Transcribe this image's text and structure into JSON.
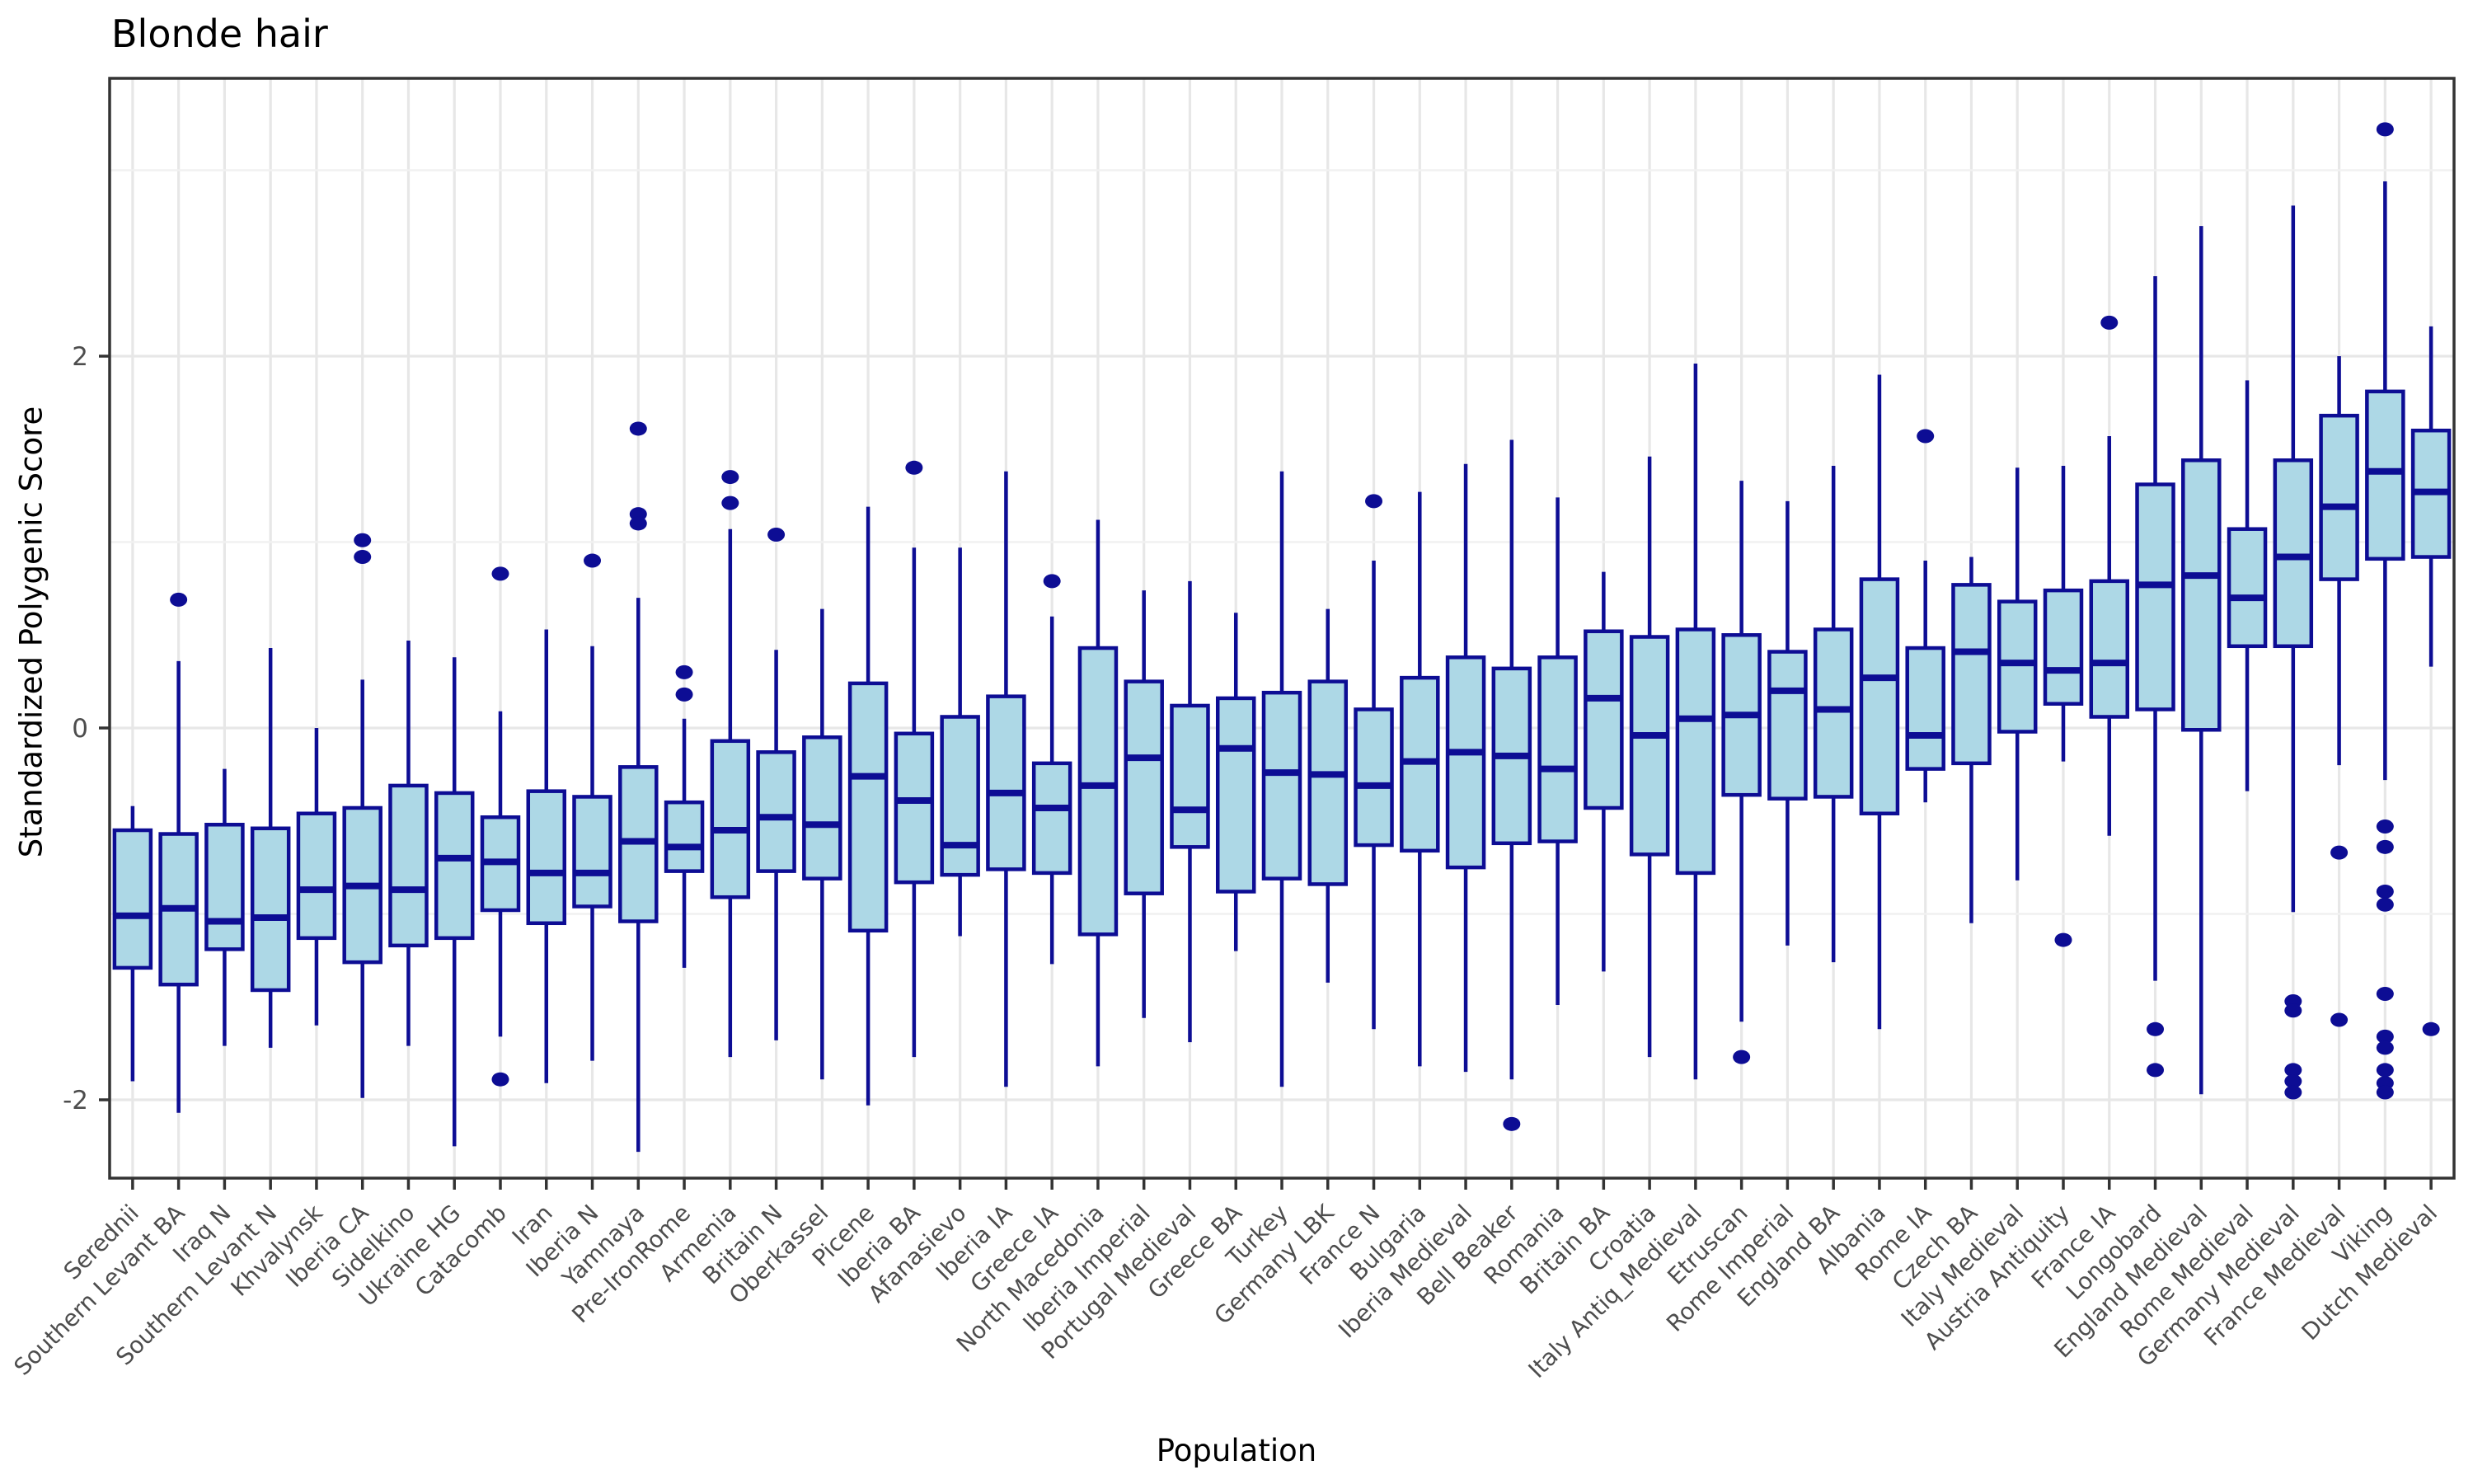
{
  "chart_data": {
    "type": "boxplot",
    "title": "Blonde hair",
    "xlabel": "Population",
    "ylabel": "Standardized Polygenic Score",
    "y_axis": {
      "ticks": [
        2,
        0,
        -2
      ],
      "minor_ticks": [
        3,
        1,
        -1
      ],
      "range": [
        -2.42,
        3.49
      ]
    },
    "legend": "none",
    "grid": "on",
    "colors": {
      "box_fill": "#ADD8E6",
      "box_line": "#0D0D94",
      "grid_major": "#E7E7E7",
      "grid_minor": "#F1F1F1",
      "panel_border": "#333333",
      "tick_text": "#4D4D4D",
      "title_text": "#000000"
    },
    "boxes": [
      {
        "name": "Serednii",
        "whislo": -1.9,
        "q1": -1.29,
        "med": -1.01,
        "q3": -0.55,
        "whishi": -0.42,
        "outliers": []
      },
      {
        "name": "Southern Levant BA",
        "whislo": -2.07,
        "q1": -1.38,
        "med": -0.97,
        "q3": -0.57,
        "whishi": 0.36,
        "outliers": [
          0.69
        ]
      },
      {
        "name": "Iraq N",
        "whislo": -1.71,
        "q1": -1.19,
        "med": -1.04,
        "q3": -0.52,
        "whishi": -0.22,
        "outliers": []
      },
      {
        "name": "Southern Levant N",
        "whislo": -1.72,
        "q1": -1.41,
        "med": -1.02,
        "q3": -0.54,
        "whishi": 0.43,
        "outliers": []
      },
      {
        "name": "Khvalynsk",
        "whislo": -1.6,
        "q1": -1.13,
        "med": -0.87,
        "q3": -0.46,
        "whishi": 0.0,
        "outliers": []
      },
      {
        "name": "Iberia CA",
        "whislo": -1.99,
        "q1": -1.26,
        "med": -0.85,
        "q3": -0.43,
        "whishi": 0.26,
        "outliers": [
          1.01,
          0.92
        ]
      },
      {
        "name": "Sidelkino",
        "whislo": -1.71,
        "q1": -1.17,
        "med": -0.87,
        "q3": -0.31,
        "whishi": 0.47,
        "outliers": []
      },
      {
        "name": "Ukraine HG",
        "whislo": -2.25,
        "q1": -1.13,
        "med": -0.7,
        "q3": -0.35,
        "whishi": 0.38,
        "outliers": []
      },
      {
        "name": "Catacomb",
        "whislo": -1.66,
        "q1": -0.98,
        "med": -0.72,
        "q3": -0.48,
        "whishi": 0.09,
        "outliers": [
          0.83,
          -1.89
        ]
      },
      {
        "name": "Iran",
        "whislo": -1.91,
        "q1": -1.05,
        "med": -0.78,
        "q3": -0.34,
        "whishi": 0.53,
        "outliers": []
      },
      {
        "name": "Iberia N",
        "whislo": -1.79,
        "q1": -0.96,
        "med": -0.78,
        "q3": -0.37,
        "whishi": 0.44,
        "outliers": [
          0.9
        ]
      },
      {
        "name": "Yamnaya",
        "whislo": -2.28,
        "q1": -1.04,
        "med": -0.61,
        "q3": -0.21,
        "whishi": 0.7,
        "outliers": [
          1.61,
          1.15,
          1.1
        ]
      },
      {
        "name": "Pre-IronRome",
        "whislo": -1.29,
        "q1": -0.77,
        "med": -0.64,
        "q3": -0.4,
        "whishi": 0.05,
        "outliers": [
          0.3,
          0.18
        ]
      },
      {
        "name": "Armenia",
        "whislo": -1.77,
        "q1": -0.91,
        "med": -0.55,
        "q3": -0.07,
        "whishi": 1.07,
        "outliers": [
          1.35,
          1.21
        ]
      },
      {
        "name": "Britain N",
        "whislo": -1.68,
        "q1": -0.77,
        "med": -0.48,
        "q3": -0.13,
        "whishi": 0.42,
        "outliers": [
          1.04
        ]
      },
      {
        "name": "Oberkassel",
        "whislo": -1.89,
        "q1": -0.81,
        "med": -0.52,
        "q3": -0.05,
        "whishi": 0.64,
        "outliers": []
      },
      {
        "name": "Picene",
        "whislo": -2.03,
        "q1": -1.09,
        "med": -0.26,
        "q3": 0.24,
        "whishi": 1.19,
        "outliers": []
      },
      {
        "name": "Iberia BA",
        "whislo": -1.77,
        "q1": -0.83,
        "med": -0.39,
        "q3": -0.03,
        "whishi": 0.97,
        "outliers": [
          1.4
        ]
      },
      {
        "name": "Afanasievo",
        "whislo": -1.12,
        "q1": -0.79,
        "med": -0.63,
        "q3": 0.06,
        "whishi": 0.97,
        "outliers": []
      },
      {
        "name": "Iberia IA",
        "whislo": -1.93,
        "q1": -0.76,
        "med": -0.35,
        "q3": 0.17,
        "whishi": 1.38,
        "outliers": []
      },
      {
        "name": "Greece IA",
        "whislo": -1.27,
        "q1": -0.78,
        "med": -0.43,
        "q3": -0.19,
        "whishi": 0.6,
        "outliers": [
          0.79
        ]
      },
      {
        "name": "North Macedonia",
        "whislo": -1.82,
        "q1": -1.11,
        "med": -0.31,
        "q3": 0.43,
        "whishi": 1.12,
        "outliers": []
      },
      {
        "name": "Iberia Imperial",
        "whislo": -1.56,
        "q1": -0.89,
        "med": -0.16,
        "q3": 0.25,
        "whishi": 0.74,
        "outliers": []
      },
      {
        "name": "Portugal Medieval",
        "whislo": -1.69,
        "q1": -0.64,
        "med": -0.44,
        "q3": 0.12,
        "whishi": 0.79,
        "outliers": []
      },
      {
        "name": "Greece BA",
        "whislo": -1.2,
        "q1": -0.88,
        "med": -0.11,
        "q3": 0.16,
        "whishi": 0.62,
        "outliers": []
      },
      {
        "name": "Turkey",
        "whislo": -1.93,
        "q1": -0.81,
        "med": -0.24,
        "q3": 0.19,
        "whishi": 1.38,
        "outliers": []
      },
      {
        "name": "Germany LBK",
        "whislo": -1.37,
        "q1": -0.84,
        "med": -0.25,
        "q3": 0.25,
        "whishi": 0.64,
        "outliers": []
      },
      {
        "name": "France N",
        "whislo": -1.62,
        "q1": -0.63,
        "med": -0.31,
        "q3": 0.1,
        "whishi": 0.9,
        "outliers": [
          1.22
        ]
      },
      {
        "name": "Bulgaria",
        "whislo": -1.82,
        "q1": -0.66,
        "med": -0.18,
        "q3": 0.27,
        "whishi": 1.27,
        "outliers": []
      },
      {
        "name": "Iberia Medieval",
        "whislo": -1.85,
        "q1": -0.75,
        "med": -0.13,
        "q3": 0.38,
        "whishi": 1.42,
        "outliers": []
      },
      {
        "name": "Bell Beaker",
        "whislo": -1.89,
        "q1": -0.62,
        "med": -0.15,
        "q3": 0.32,
        "whishi": 1.55,
        "outliers": [
          -2.13
        ]
      },
      {
        "name": "Romania",
        "whislo": -1.49,
        "q1": -0.61,
        "med": -0.22,
        "q3": 0.38,
        "whishi": 1.24,
        "outliers": []
      },
      {
        "name": "Britain BA",
        "whislo": -1.31,
        "q1": -0.43,
        "med": 0.16,
        "q3": 0.52,
        "whishi": 0.84,
        "outliers": []
      },
      {
        "name": "Croatia",
        "whislo": -1.77,
        "q1": -0.68,
        "med": -0.04,
        "q3": 0.49,
        "whishi": 1.46,
        "outliers": []
      },
      {
        "name": "Italy Antiq_Medieval",
        "whislo": -1.89,
        "q1": -0.78,
        "med": 0.05,
        "q3": 0.53,
        "whishi": 1.96,
        "outliers": []
      },
      {
        "name": "Etruscan",
        "whislo": -1.58,
        "q1": -0.36,
        "med": 0.07,
        "q3": 0.5,
        "whishi": 1.33,
        "outliers": [
          -1.77
        ]
      },
      {
        "name": "Rome Imperial",
        "whislo": -1.17,
        "q1": -0.38,
        "med": 0.2,
        "q3": 0.41,
        "whishi": 1.22,
        "outliers": []
      },
      {
        "name": "England BA",
        "whislo": -1.26,
        "q1": -0.37,
        "med": 0.1,
        "q3": 0.53,
        "whishi": 1.41,
        "outliers": []
      },
      {
        "name": "Albania",
        "whislo": -1.62,
        "q1": -0.46,
        "med": 0.27,
        "q3": 0.8,
        "whishi": 1.9,
        "outliers": []
      },
      {
        "name": "Rome IA",
        "whislo": -0.4,
        "q1": -0.22,
        "med": -0.04,
        "q3": 0.43,
        "whishi": 0.9,
        "outliers": [
          1.57
        ]
      },
      {
        "name": "Czech BA",
        "whislo": -1.05,
        "q1": -0.19,
        "med": 0.41,
        "q3": 0.77,
        "whishi": 0.92,
        "outliers": []
      },
      {
        "name": "Italy Medieval",
        "whislo": -0.82,
        "q1": -0.02,
        "med": 0.35,
        "q3": 0.68,
        "whishi": 1.4,
        "outliers": []
      },
      {
        "name": "Austria Antiquity",
        "whislo": -0.18,
        "q1": 0.13,
        "med": 0.31,
        "q3": 0.74,
        "whishi": 1.41,
        "outliers": [
          -1.14
        ]
      },
      {
        "name": "France IA",
        "whislo": -0.58,
        "q1": 0.06,
        "med": 0.35,
        "q3": 0.79,
        "whishi": 1.57,
        "outliers": [
          2.18
        ]
      },
      {
        "name": "Longobard",
        "whislo": -1.36,
        "q1": 0.1,
        "med": 0.77,
        "q3": 1.31,
        "whishi": 2.43,
        "outliers": [
          -1.62,
          -1.84
        ]
      },
      {
        "name": "England Medieval",
        "whislo": -1.97,
        "q1": -0.01,
        "med": 0.82,
        "q3": 1.44,
        "whishi": 2.7,
        "outliers": []
      },
      {
        "name": "Rome Medieval",
        "whislo": -0.34,
        "q1": 0.44,
        "med": 0.7,
        "q3": 1.07,
        "whishi": 1.87,
        "outliers": []
      },
      {
        "name": "Germany Medieval",
        "whislo": -0.99,
        "q1": 0.44,
        "med": 0.92,
        "q3": 1.44,
        "whishi": 2.81,
        "outliers": [
          -1.47,
          -1.52,
          -1.84,
          -1.9,
          -1.96
        ]
      },
      {
        "name": "France Medieval",
        "whislo": -0.2,
        "q1": 0.8,
        "med": 1.19,
        "q3": 1.68,
        "whishi": 2.0,
        "outliers": [
          -0.67,
          -1.57
        ]
      },
      {
        "name": "Viking",
        "whislo": -0.28,
        "q1": 0.91,
        "med": 1.38,
        "q3": 1.81,
        "whishi": 2.94,
        "outliers": [
          3.22,
          -0.53,
          -0.64,
          -0.88,
          -0.95,
          -1.43,
          -1.66,
          -1.72,
          -1.84,
          -1.91,
          -1.96
        ]
      },
      {
        "name": "Dutch Medieval",
        "whislo": 0.33,
        "q1": 0.92,
        "med": 1.27,
        "q3": 1.6,
        "whishi": 2.16,
        "outliers": [
          -1.62
        ]
      }
    ]
  }
}
